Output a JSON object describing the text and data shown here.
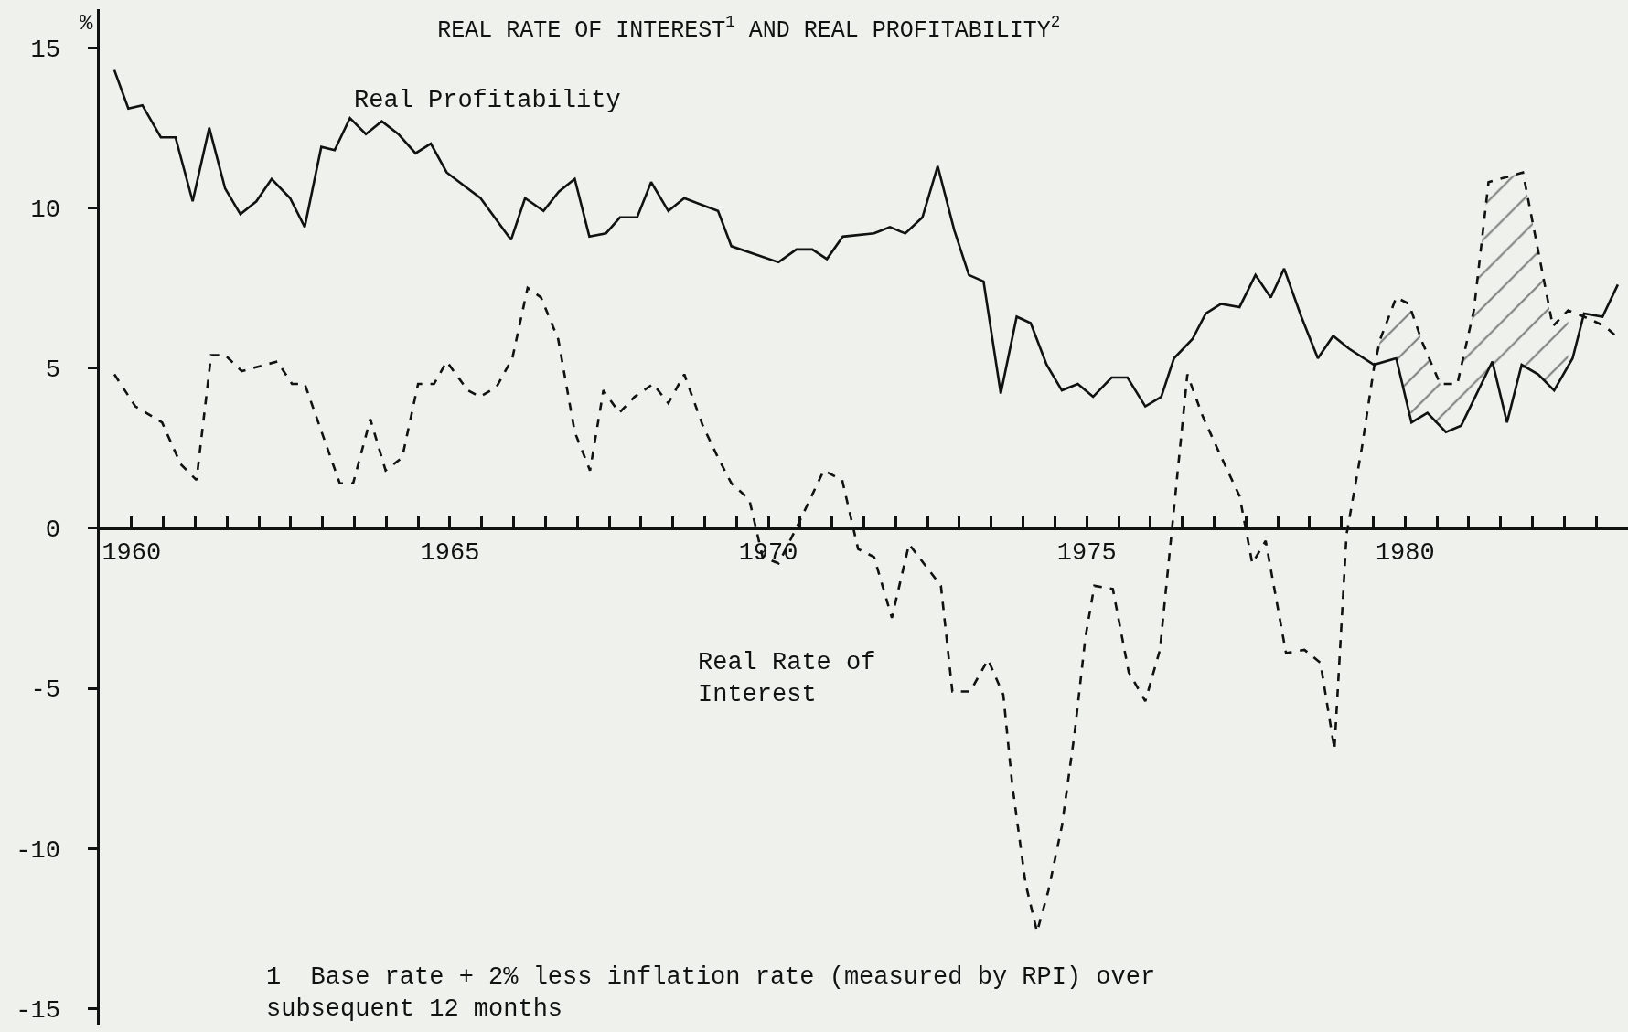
{
  "chart_data": {
    "type": "line",
    "title": "REAL RATE OF INTEREST$^{1}$ AND REAL PROFITABILITY$^{2}$",
    "ylabel": "%",
    "annotations": [
      "1  Base rate + 2% less inflation rate (measured by RPI) over subsequent 12 months"
    ],
    "xlim": [
      1960,
      1984
    ],
    "ylim": [
      -15.5,
      16.2
    ],
    "xticks": [
      {
        "value": 1960.5,
        "label": "1960"
      },
      {
        "value": 1961,
        "label": null
      },
      {
        "value": 1961.5,
        "label": null
      },
      {
        "value": 1962,
        "label": null
      },
      {
        "value": 1962.5,
        "label": null
      },
      {
        "value": 1963,
        "label": null
      },
      {
        "value": 1963.5,
        "label": null
      },
      {
        "value": 1964,
        "label": null
      },
      {
        "value": 1964.5,
        "label": null
      },
      {
        "value": 1965,
        "label": null
      },
      {
        "value": 1965.5,
        "label": "1965"
      },
      {
        "value": 1966,
        "label": null
      },
      {
        "value": 1966.5,
        "label": null
      },
      {
        "value": 1967,
        "label": null
      },
      {
        "value": 1967.5,
        "label": null
      },
      {
        "value": 1968,
        "label": null
      },
      {
        "value": 1968.5,
        "label": null
      },
      {
        "value": 1969,
        "label": null
      },
      {
        "value": 1969.5,
        "label": null
      },
      {
        "value": 1970,
        "label": null
      },
      {
        "value": 1970.5,
        "label": "1970"
      },
      {
        "value": 1971,
        "label": null
      },
      {
        "value": 1971.5,
        "label": null
      },
      {
        "value": 1972,
        "label": null
      },
      {
        "value": 1972.5,
        "label": null
      },
      {
        "value": 1973,
        "label": null
      },
      {
        "value": 1973.5,
        "label": null
      },
      {
        "value": 1974,
        "label": null
      },
      {
        "value": 1974.5,
        "label": null
      },
      {
        "value": 1975,
        "label": null
      },
      {
        "value": 1975.5,
        "label": "1975"
      },
      {
        "value": 1976,
        "label": null
      },
      {
        "value": 1976.5,
        "label": null
      },
      {
        "value": 1977,
        "label": null
      },
      {
        "value": 1977.5,
        "label": null
      },
      {
        "value": 1978,
        "label": null
      },
      {
        "value": 1978.5,
        "label": null
      },
      {
        "value": 1979,
        "label": null
      },
      {
        "value": 1979.5,
        "label": null
      },
      {
        "value": 1980,
        "label": null
      },
      {
        "value": 1980.5,
        "label": "1980"
      },
      {
        "value": 1981,
        "label": null
      },
      {
        "value": 1981.5,
        "label": null
      },
      {
        "value": 1982,
        "label": null
      },
      {
        "value": 1982.5,
        "label": null
      },
      {
        "value": 1983,
        "label": null
      },
      {
        "value": 1983.5,
        "label": null
      }
    ],
    "yticks": [
      -15,
      -10,
      -5,
      0,
      5,
      10,
      15
    ],
    "grid": false,
    "legend": false,
    "marker": "none",
    "series": [
      {
        "name": "Real Profitability",
        "color": "#111111",
        "line_style": "solid",
        "x": [
          1960.23,
          1960.45,
          1960.67,
          1960.96,
          1961.19,
          1961.46,
          1961.72,
          1961.97,
          1962.21,
          1962.46,
          1962.7,
          1962.99,
          1963.22,
          1963.48,
          1963.69,
          1963.93,
          1964.18,
          1964.43,
          1964.69,
          1964.96,
          1965.2,
          1965.45,
          1965.98,
          1966.46,
          1966.68,
          1966.97,
          1967.21,
          1967.46,
          1967.69,
          1967.95,
          1968.17,
          1968.44,
          1968.66,
          1968.93,
          1969.18,
          1969.71,
          1969.92,
          1970.66,
          1970.94,
          1971.19,
          1971.42,
          1971.67,
          1972.16,
          1972.41,
          1972.65,
          1972.92,
          1973.16,
          1973.42,
          1973.65,
          1973.88,
          1974.15,
          1974.4,
          1974.62,
          1974.87,
          1975.11,
          1975.36,
          1975.6,
          1975.89,
          1976.14,
          1976.42,
          1976.67,
          1976.87,
          1977.16,
          1977.37,
          1977.61,
          1977.9,
          1978.15,
          1978.39,
          1978.6,
          1978.87,
          1979.13,
          1979.37,
          1979.62,
          1980.01,
          1980.36,
          1980.6,
          1980.85,
          1981.14,
          1981.38,
          1981.87,
          1982.1,
          1982.33,
          1982.59,
          1982.84,
          1983.13,
          1983.31,
          1983.6,
          1983.84
        ],
        "values": [
          14.3,
          13.1,
          13.2,
          12.2,
          12.2,
          10.2,
          12.5,
          10.6,
          9.8,
          10.2,
          10.9,
          10.3,
          9.4,
          11.9,
          11.8,
          12.8,
          12.3,
          12.7,
          12.3,
          11.7,
          12.0,
          11.1,
          10.3,
          9.0,
          10.3,
          9.9,
          10.5,
          10.9,
          9.1,
          9.2,
          9.7,
          9.7,
          10.8,
          9.9,
          10.3,
          9.9,
          8.8,
          8.3,
          8.7,
          8.7,
          8.4,
          9.1,
          9.2,
          9.4,
          9.2,
          9.7,
          11.3,
          9.3,
          7.9,
          7.7,
          4.2,
          6.6,
          6.4,
          5.1,
          4.3,
          4.5,
          4.1,
          4.7,
          4.7,
          3.8,
          4.1,
          5.3,
          5.9,
          6.7,
          7.0,
          6.9,
          7.9,
          7.2,
          8.1,
          6.6,
          5.3,
          6.0,
          5.6,
          5.1,
          5.3,
          3.3,
          3.6,
          3.0,
          3.2,
          5.2,
          3.3,
          5.1,
          4.8,
          4.3,
          5.3,
          6.7,
          6.6,
          7.6
        ]
      },
      {
        "name": "Real Rate of Interest",
        "color": "#111111",
        "line_style": "dashed",
        "x": [
          1960.23,
          1960.56,
          1960.98,
          1961.27,
          1961.52,
          1961.75,
          1961.97,
          1962.23,
          1962.79,
          1963.02,
          1963.22,
          1963.77,
          1963.98,
          1964.25,
          1964.49,
          1964.75,
          1965.0,
          1965.25,
          1965.45,
          1965.78,
          1965.97,
          1966.23,
          1966.48,
          1966.72,
          1966.93,
          1967.2,
          1967.46,
          1967.7,
          1967.91,
          1968.16,
          1968.4,
          1968.69,
          1968.93,
          1969.18,
          1969.47,
          1969.71,
          1969.92,
          1970.2,
          1970.41,
          1970.66,
          1970.94,
          1971.37,
          1971.66,
          1971.91,
          1972.16,
          1972.44,
          1972.71,
          1973.21,
          1973.39,
          1973.67,
          1973.95,
          1974.19,
          1974.33,
          1974.54,
          1974.72,
          1974.9,
          1975.11,
          1975.31,
          1975.48,
          1975.62,
          1975.91,
          1976.16,
          1976.42,
          1976.65,
          1976.75,
          1977.08,
          1977.32,
          1977.57,
          1977.9,
          1978.1,
          1978.31,
          1978.63,
          1978.92,
          1979.17,
          1979.39,
          1979.58,
          1979.82,
          1980.01,
          1980.11,
          1980.36,
          1980.56,
          1980.77,
          1981.05,
          1981.32,
          1981.58,
          1981.81,
          1982.35,
          1982.82,
          1983.06,
          1983.31,
          1983.64,
          1983.86
        ],
        "values": [
          4.8,
          3.8,
          3.3,
          2.0,
          1.5,
          5.4,
          5.4,
          4.9,
          5.2,
          4.5,
          4.5,
          1.4,
          1.4,
          3.4,
          1.8,
          2.2,
          4.5,
          4.5,
          5.2,
          4.3,
          4.1,
          4.4,
          5.3,
          7.5,
          7.2,
          5.9,
          3.0,
          1.8,
          4.3,
          3.6,
          4.1,
          4.5,
          3.9,
          4.8,
          3.2,
          2.2,
          1.4,
          0.9,
          -0.9,
          -1.1,
          0.0,
          1.8,
          1.5,
          -0.65,
          -0.9,
          -2.8,
          -0.5,
          -1.8,
          -5.1,
          -5.1,
          -4.1,
          -5.2,
          -8.0,
          -11.1,
          -12.6,
          -11.3,
          -9.3,
          -6.4,
          -3.4,
          -1.8,
          -1.9,
          -4.5,
          -5.4,
          -3.8,
          -1.8,
          4.8,
          3.5,
          2.4,
          1.0,
          -1.1,
          -0.4,
          -3.9,
          -3.8,
          -4.2,
          -6.9,
          -0.2,
          2.5,
          5.0,
          5.9,
          7.2,
          7.0,
          5.8,
          4.5,
          4.5,
          6.8,
          10.8,
          11.1,
          6.3,
          6.8,
          6.6,
          6.3,
          5.9
        ],
        "lower": [
          null,
          null,
          null,
          null,
          null,
          null,
          null,
          null,
          null,
          null,
          null,
          null,
          null,
          null,
          null,
          null,
          null,
          null,
          null,
          null,
          null,
          null,
          null,
          null,
          null,
          null,
          null,
          null,
          null,
          null,
          null,
          null,
          null,
          null,
          null,
          null,
          null,
          null,
          null,
          null,
          null,
          null,
          null,
          null,
          null,
          null,
          null,
          null,
          null,
          null,
          null,
          null,
          null,
          null,
          null,
          null,
          null,
          null,
          null,
          null,
          null,
          null,
          null,
          null,
          null,
          null,
          null,
          null,
          null,
          null,
          null,
          null,
          null,
          null,
          null,
          null,
          null,
          5.1,
          5.15,
          5.3,
          3.6,
          3.5,
          3.2,
          3.15,
          4.0,
          5.0,
          5.0,
          4.4,
          5.1,
          null,
          null,
          null
        ],
        "upper": [
          null,
          null,
          null,
          null,
          null,
          null,
          null,
          null,
          null,
          null,
          null,
          null,
          null,
          null,
          null,
          null,
          null,
          null,
          null,
          null,
          null,
          null,
          null,
          null,
          null,
          null,
          null,
          null,
          null,
          null,
          null,
          null,
          null,
          null,
          null,
          null,
          null,
          null,
          null,
          null,
          null,
          null,
          null,
          null,
          null,
          null,
          null,
          null,
          null,
          null,
          null,
          null,
          null,
          null,
          null,
          null,
          null,
          null,
          null,
          null,
          null,
          null,
          null,
          null,
          null,
          null,
          null,
          null,
          null,
          null,
          null,
          null,
          null,
          null,
          null,
          null,
          null,
          5.0,
          5.9,
          7.2,
          7.0,
          5.8,
          4.5,
          4.5,
          6.8,
          10.8,
          11.1,
          6.3,
          6.8,
          null,
          null,
          null
        ]
      }
    ]
  }
}
